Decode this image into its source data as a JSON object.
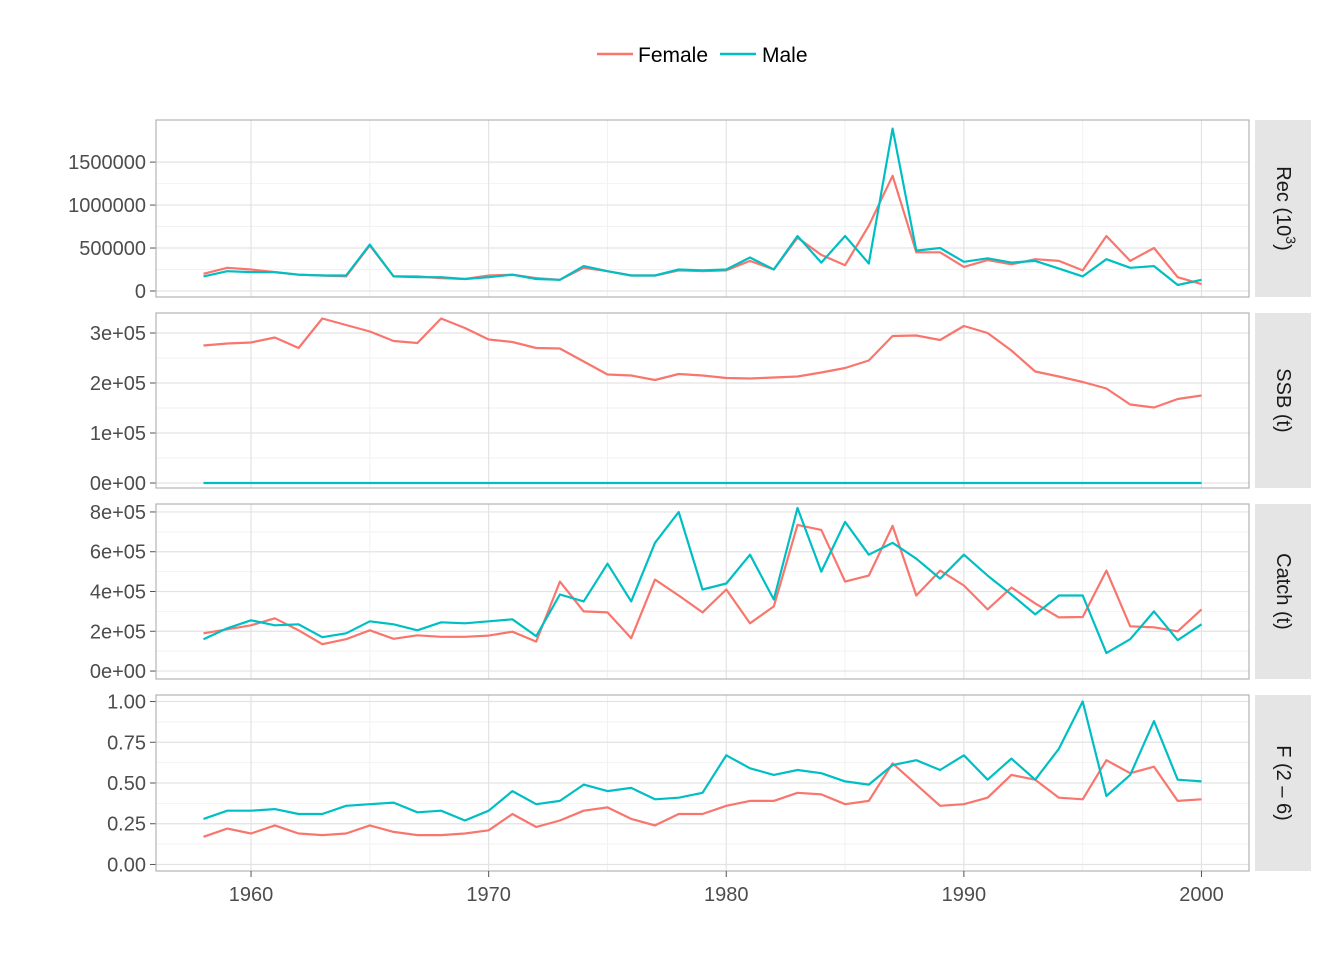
{
  "legend": {
    "position": "top",
    "entries": [
      {
        "name": "Female",
        "color": "#F8766D"
      },
      {
        "name": "Male",
        "color": "#00BFC4"
      }
    ]
  },
  "chart_data": {
    "type": "line",
    "facet_layout": "stacked panels sharing x axis, strip labels on right",
    "grid": true,
    "x": [
      1958,
      1959,
      1960,
      1961,
      1962,
      1963,
      1964,
      1965,
      1966,
      1967,
      1968,
      1969,
      1970,
      1971,
      1972,
      1973,
      1974,
      1975,
      1976,
      1977,
      1978,
      1979,
      1980,
      1981,
      1982,
      1983,
      1984,
      1985,
      1986,
      1987,
      1988,
      1989,
      1990,
      1991,
      1992,
      1993,
      1994,
      1995,
      1996,
      1997,
      1998,
      1999,
      2000
    ],
    "xlim": [
      1956,
      2002
    ],
    "xticks": [
      1960,
      1970,
      1980,
      1990,
      2000
    ],
    "panels": [
      {
        "strip": "Rec  (10",
        "strip_sup": "3",
        "strip_after": ")",
        "ylim": [
          -70000,
          1990000
        ],
        "yticks": [
          0,
          500000,
          1000000,
          1500000
        ],
        "ytick_labels": [
          "0",
          "500000",
          "1000000",
          "1500000"
        ],
        "series": [
          {
            "name": "Female",
            "values": [
              200000,
              270000,
              250000,
              220000,
              190000,
              180000,
              170000,
              530000,
              170000,
              170000,
              150000,
              140000,
              180000,
              190000,
              150000,
              130000,
              270000,
              230000,
              180000,
              180000,
              240000,
              230000,
              240000,
              350000,
              250000,
              620000,
              420000,
              300000,
              760000,
              1340000,
              450000,
              450000,
              280000,
              360000,
              310000,
              370000,
              350000,
              240000,
              640000,
              350000,
              500000,
              160000,
              80000
            ]
          },
          {
            "name": "Male",
            "values": [
              170000,
              230000,
              220000,
              220000,
              190000,
              180000,
              180000,
              540000,
              170000,
              160000,
              160000,
              140000,
              160000,
              190000,
              140000,
              130000,
              290000,
              230000,
              180000,
              180000,
              250000,
              240000,
              250000,
              390000,
              250000,
              640000,
              330000,
              640000,
              320000,
              1890000,
              470000,
              500000,
              340000,
              380000,
              330000,
              350000,
              260000,
              170000,
              370000,
              270000,
              290000,
              70000,
              130000
            ]
          }
        ]
      },
      {
        "strip": "SSB  (t)",
        "ylim": [
          -10000,
          340000
        ],
        "yticks": [
          0,
          100000,
          200000,
          300000
        ],
        "ytick_labels": [
          "0e+00",
          "1e+05",
          "2e+05",
          "3e+05"
        ],
        "series": [
          {
            "name": "Female",
            "values": [
              275000,
              279000,
              281000,
              291000,
              270000,
              329000,
              316000,
              303000,
              284000,
              280000,
              329000,
              310000,
              287000,
              282000,
              270000,
              269000,
              243000,
              217000,
              215000,
              206000,
              218000,
              215000,
              210000,
              209000,
              211000,
              213000,
              221000,
              230000,
              245000,
              294000,
              295000,
              286000,
              314000,
              300000,
              265000,
              223000,
              213000,
              202000,
              189000,
              157000,
              151000,
              168000,
              175000
            ]
          },
          {
            "name": "Male",
            "values": [
              0,
              0,
              0,
              0,
              0,
              0,
              0,
              0,
              0,
              0,
              0,
              0,
              0,
              0,
              0,
              0,
              0,
              0,
              0,
              0,
              0,
              0,
              0,
              0,
              0,
              0,
              0,
              0,
              0,
              0,
              0,
              0,
              0,
              0,
              0,
              0,
              0,
              0,
              0,
              0,
              0,
              0,
              0
            ]
          }
        ]
      },
      {
        "strip": "Catch  (t)",
        "ylim": [
          -40000,
          840000
        ],
        "yticks": [
          0,
          200000,
          400000,
          600000,
          800000
        ],
        "ytick_labels": [
          "0e+00",
          "2e+05",
          "4e+05",
          "6e+05",
          "8e+05"
        ],
        "series": [
          {
            "name": "Female",
            "values": [
              190000,
              210000,
              230000,
              265000,
              205000,
              135000,
              160000,
              205000,
              162000,
              180000,
              172000,
              172000,
              178000,
              198000,
              148000,
              450000,
              300000,
              295000,
              165000,
              460000,
              380000,
              295000,
              410000,
              240000,
              325000,
              735000,
              710000,
              450000,
              480000,
              730000,
              380000,
              505000,
              430000,
              310000,
              420000,
              340000,
              270000,
              272000,
              505000,
              225000,
              220000,
              200000,
              310000
            ]
          },
          {
            "name": "Male",
            "values": [
              160000,
              215000,
              255000,
              230000,
              235000,
              170000,
              190000,
              250000,
              235000,
              205000,
              245000,
              240000,
              250000,
              260000,
              175000,
              385000,
              350000,
              540000,
              350000,
              645000,
              800000,
              410000,
              440000,
              585000,
              360000,
              820000,
              500000,
              750000,
              585000,
              645000,
              565000,
              465000,
              585000,
              480000,
              385000,
              285000,
              380000,
              380000,
              90000,
              160000,
              300000,
              155000,
              235000
            ]
          }
        ]
      },
      {
        "strip": "F  (2 – 6)",
        "ylim": [
          -0.04,
          1.04
        ],
        "yticks": [
          0,
          0.25,
          0.5,
          0.75,
          1.0
        ],
        "ytick_labels": [
          "0.00",
          "0.25",
          "0.50",
          "0.75",
          "1.00"
        ],
        "series": [
          {
            "name": "Female",
            "values": [
              0.17,
              0.22,
              0.19,
              0.24,
              0.19,
              0.18,
              0.19,
              0.24,
              0.2,
              0.18,
              0.18,
              0.19,
              0.21,
              0.31,
              0.23,
              0.27,
              0.33,
              0.35,
              0.28,
              0.24,
              0.31,
              0.31,
              0.36,
              0.39,
              0.39,
              0.44,
              0.43,
              0.37,
              0.39,
              0.62,
              0.49,
              0.36,
              0.37,
              0.41,
              0.55,
              0.52,
              0.41,
              0.4,
              0.64,
              0.56,
              0.6,
              0.39,
              0.4
            ]
          },
          {
            "name": "Male",
            "values": [
              0.28,
              0.33,
              0.33,
              0.34,
              0.31,
              0.31,
              0.36,
              0.37,
              0.38,
              0.32,
              0.33,
              0.27,
              0.33,
              0.45,
              0.37,
              0.39,
              0.49,
              0.45,
              0.47,
              0.4,
              0.41,
              0.44,
              0.67,
              0.59,
              0.55,
              0.58,
              0.56,
              0.51,
              0.49,
              0.61,
              0.64,
              0.58,
              0.67,
              0.52,
              0.65,
              0.52,
              0.71,
              1.0,
              0.42,
              0.55,
              0.88,
              0.52,
              0.51
            ]
          }
        ]
      }
    ]
  }
}
